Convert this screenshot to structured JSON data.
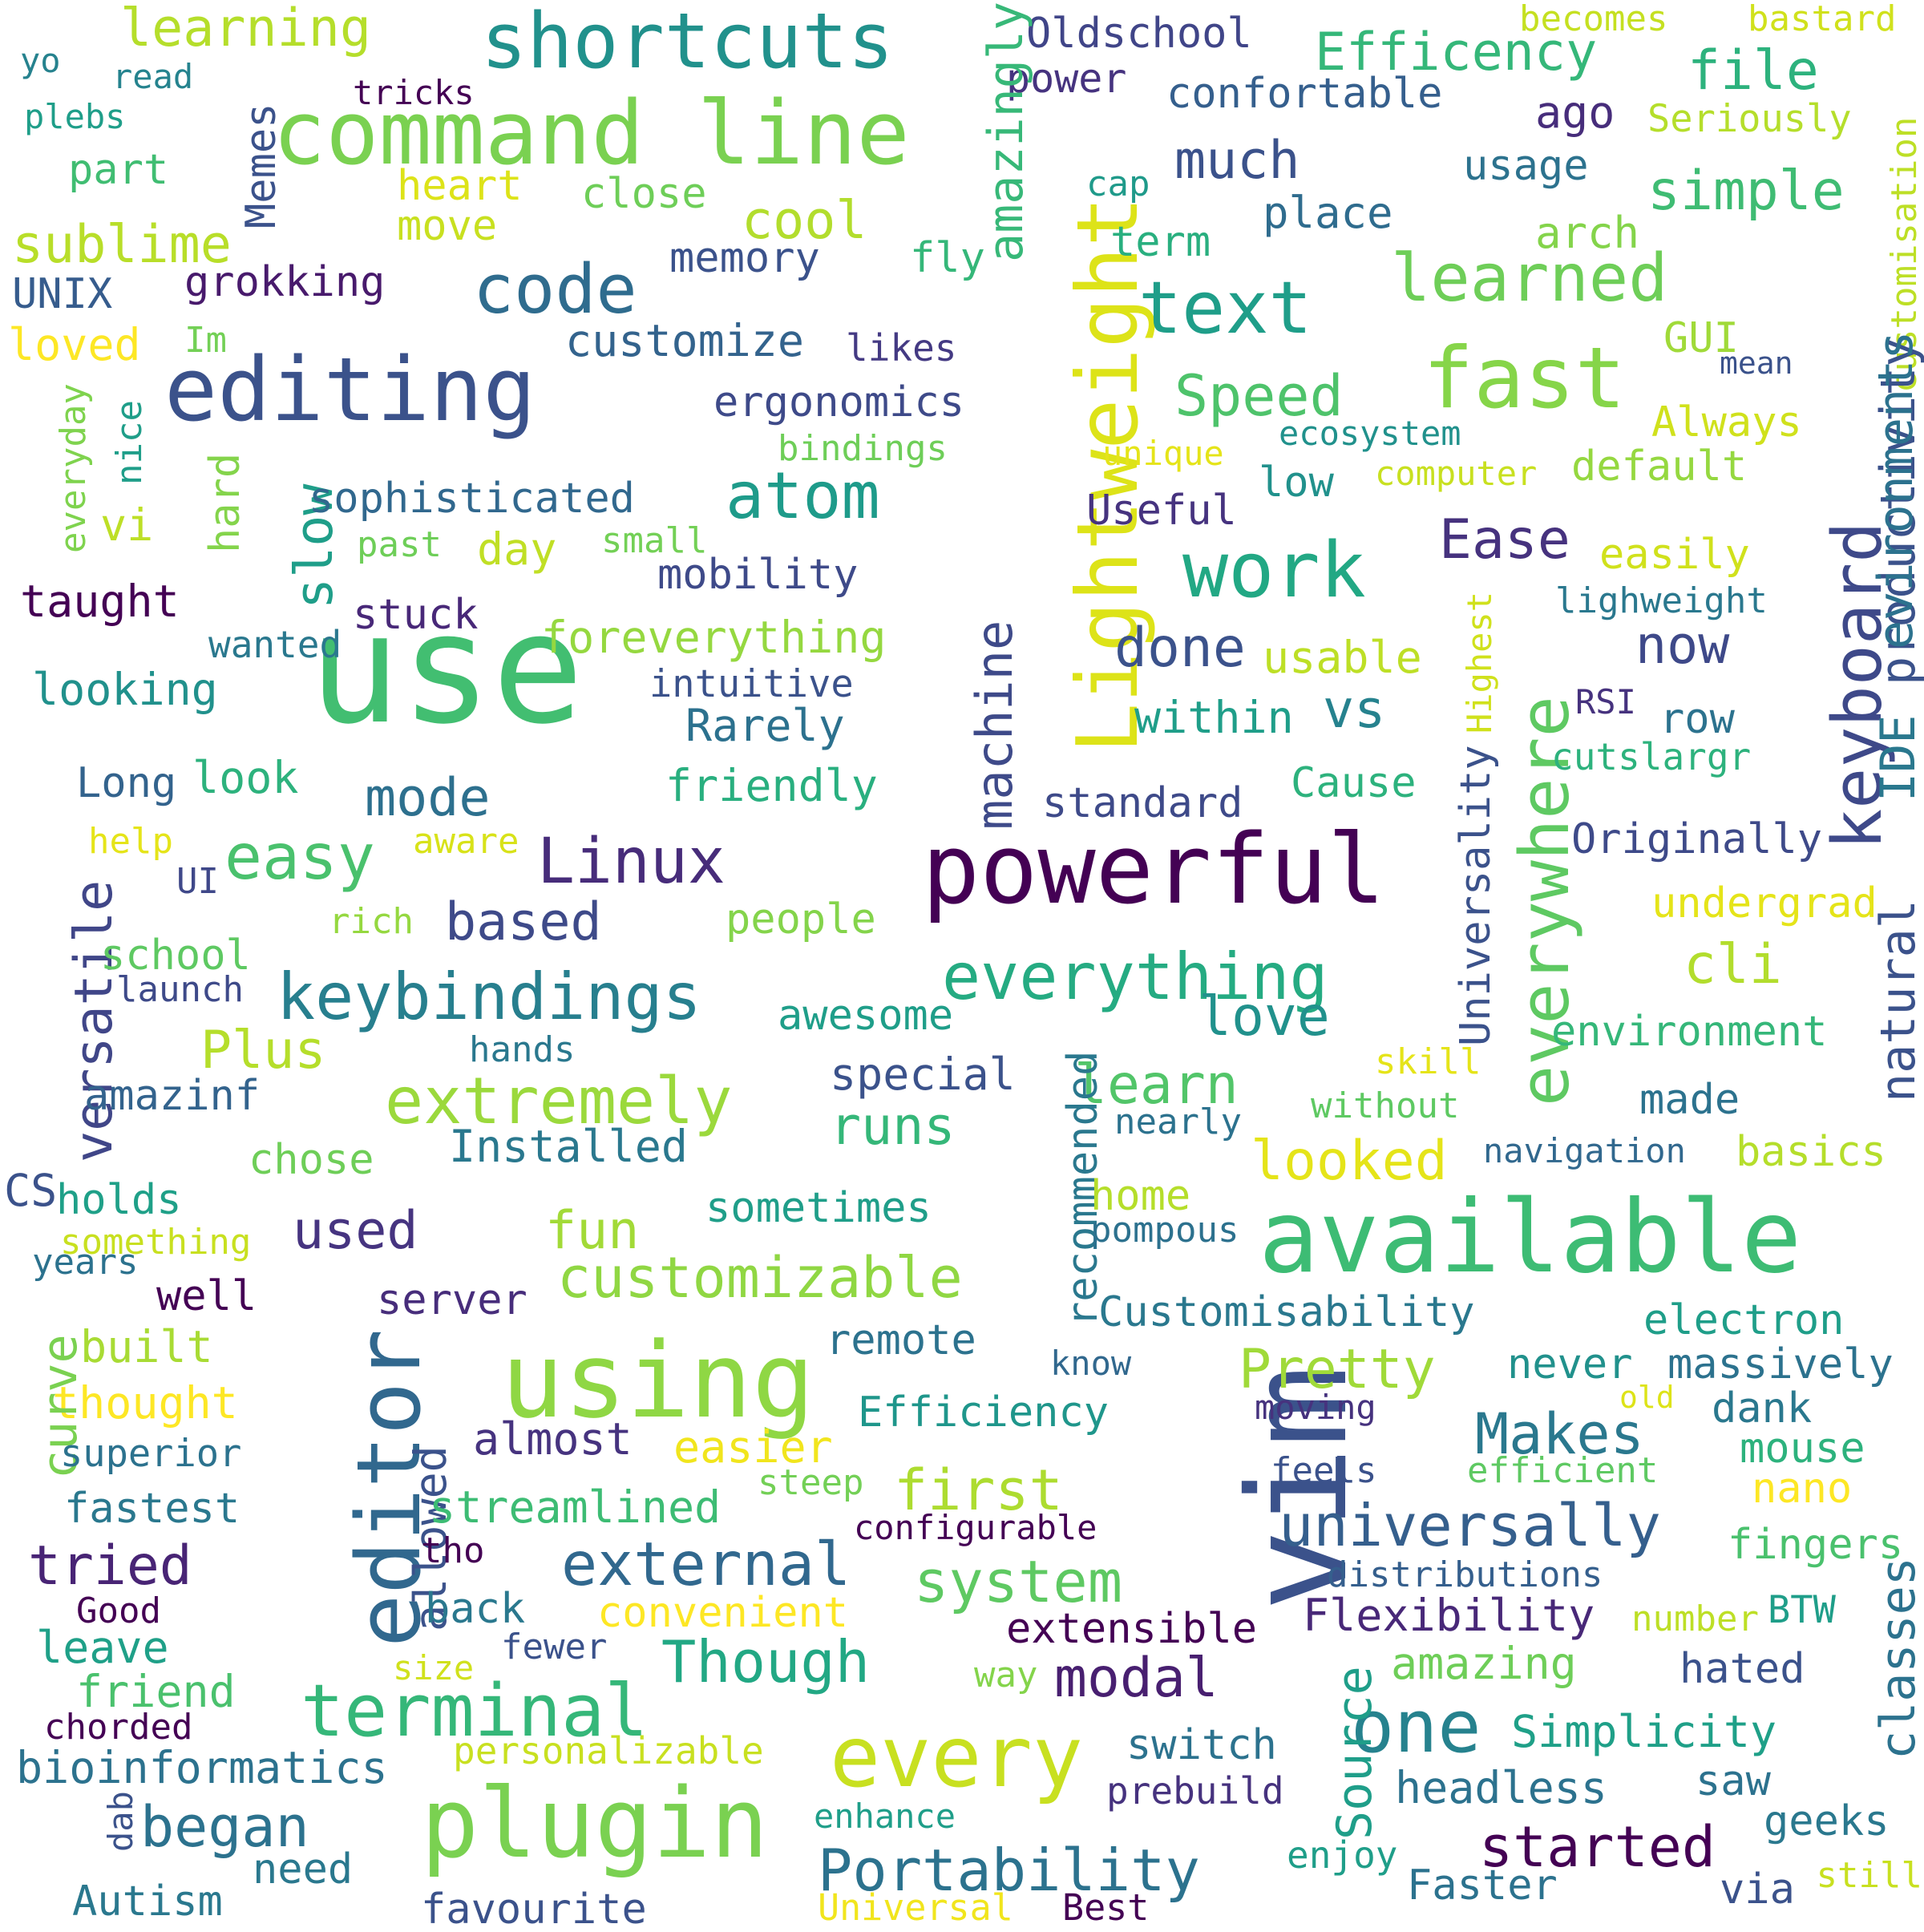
{
  "words": [
    {
      "text": "use",
      "color": "#42be71"
    },
    {
      "text": "editing",
      "color": "#3b528b"
    },
    {
      "text": "powerful",
      "color": "#440154"
    },
    {
      "text": "available",
      "color": "#3dbc74"
    },
    {
      "text": "vim",
      "color": "#3b528b"
    },
    {
      "text": "editor",
      "color": "#31688e"
    },
    {
      "text": "command line",
      "color": "#7ad151"
    },
    {
      "text": "shortcuts",
      "color": "#21918c"
    },
    {
      "text": "Lightweight",
      "color": "#dde318"
    },
    {
      "text": "using",
      "color": "#8fd744"
    },
    {
      "text": "plugin",
      "color": "#7ad151"
    },
    {
      "text": "every",
      "color": "#c8e020"
    },
    {
      "text": "code",
      "color": "#2f6c8e"
    },
    {
      "text": "text",
      "color": "#1f9e89"
    },
    {
      "text": "fast",
      "color": "#86d549"
    },
    {
      "text": "work",
      "color": "#22a884"
    },
    {
      "text": "everywhere",
      "color": "#5ec962"
    },
    {
      "text": "keyboard",
      "color": "#3e4989"
    },
    {
      "text": "atom",
      "color": "#1e9b8a"
    },
    {
      "text": "keybindings",
      "color": "#277f8e"
    },
    {
      "text": "everything",
      "color": "#25ab82"
    },
    {
      "text": "terminal",
      "color": "#35b779"
    },
    {
      "text": "extremely",
      "color": "#9bd93c"
    },
    {
      "text": "customizable",
      "color": "#90d743"
    },
    {
      "text": "one",
      "color": "#26828e"
    },
    {
      "text": "started",
      "color": "#440154"
    },
    {
      "text": "Portability",
      "color": "#2c728e"
    },
    {
      "text": "universally",
      "color": "#355f8d"
    },
    {
      "text": "Linux",
      "color": "#472c7a"
    },
    {
      "text": "learned",
      "color": "#6ece58"
    },
    {
      "text": "Efficency",
      "color": "#35b779"
    },
    {
      "text": "easy",
      "color": "#4ac16d"
    },
    {
      "text": "Speed",
      "color": "#4ec36b"
    },
    {
      "text": "machine",
      "color": "#3e4a89"
    },
    {
      "text": "versatile",
      "color": "#404688"
    },
    {
      "text": "external",
      "color": "#31688e"
    },
    {
      "text": "system",
      "color": "#5ec962"
    },
    {
      "text": "modal",
      "color": "#481f70"
    },
    {
      "text": "Though",
      "color": "#22a884"
    },
    {
      "text": "Makes",
      "color": "#2a788e"
    },
    {
      "text": "Pretty",
      "color": "#a0da39"
    },
    {
      "text": "first",
      "color": "#addc30"
    },
    {
      "text": "began",
      "color": "#2c728e"
    },
    {
      "text": "tried",
      "color": "#482475"
    },
    {
      "text": "learning",
      "color": "#b5de2b"
    },
    {
      "text": "much",
      "color": "#3b528b"
    },
    {
      "text": "file",
      "color": "#2db27d"
    },
    {
      "text": "simple",
      "color": "#3fbc73"
    },
    {
      "text": "cool",
      "color": "#b2dd2d"
    },
    {
      "text": "sublime",
      "color": "#b8de29"
    },
    {
      "text": "love",
      "color": "#21918c"
    },
    {
      "text": "done",
      "color": "#3b528b"
    },
    {
      "text": "now",
      "color": "#3e4989"
    },
    {
      "text": "learn",
      "color": "#52c569"
    },
    {
      "text": "looked",
      "color": "#e5e419"
    },
    {
      "text": "cli",
      "color": "#b2dd2d"
    },
    {
      "text": "Ease",
      "color": "#46327e"
    },
    {
      "text": "used",
      "color": "#463480"
    },
    {
      "text": "fun",
      "color": "#a2da37"
    },
    {
      "text": "runs",
      "color": "#35b779"
    },
    {
      "text": "based",
      "color": "#3e4a89"
    },
    {
      "text": "mode",
      "color": "#2d708e"
    },
    {
      "text": "Plus",
      "color": "#b5de2b"
    },
    {
      "text": "vs",
      "color": "#26828e"
    },
    {
      "text": "slow",
      "color": "#1f9e89"
    }
  ],
  "words_small": [
    {
      "text": "Oldschool",
      "color": "#404588"
    },
    {
      "text": "confortable",
      "color": "#355f8d"
    },
    {
      "text": "power",
      "color": "#46337f"
    },
    {
      "text": "ago",
      "color": "#472d7b"
    },
    {
      "text": "Seriously",
      "color": "#b5de2b"
    },
    {
      "text": "becomes",
      "color": "#c5e021"
    },
    {
      "text": "bastard",
      "color": "#d0e11c"
    },
    {
      "text": "customisation",
      "color": "#bddf26"
    },
    {
      "text": "amazingly",
      "color": "#37b878"
    },
    {
      "text": "usage",
      "color": "#2c728e"
    },
    {
      "text": "place",
      "color": "#2f6c8e"
    },
    {
      "text": "arch",
      "color": "#84d44b"
    },
    {
      "text": "cap",
      "color": "#1f9a8a"
    },
    {
      "text": "term",
      "color": "#29af7f"
    },
    {
      "text": "fly",
      "color": "#35b779"
    },
    {
      "text": "memory",
      "color": "#3b528b"
    },
    {
      "text": "close",
      "color": "#6ece58"
    },
    {
      "text": "heart",
      "color": "#dde318"
    },
    {
      "text": "move",
      "color": "#c8e020"
    },
    {
      "text": "tricks",
      "color": "#440154"
    },
    {
      "text": "read",
      "color": "#25838e"
    },
    {
      "text": "yo",
      "color": "#26828e"
    },
    {
      "text": "plebs",
      "color": "#1f9e89"
    },
    {
      "text": "part",
      "color": "#40bd72"
    },
    {
      "text": "Memes",
      "color": "#3b528b"
    },
    {
      "text": "UNIX",
      "color": "#365c8d"
    },
    {
      "text": "grokking",
      "color": "#481a6c"
    },
    {
      "text": "loved",
      "color": "#fde725"
    },
    {
      "text": "Im",
      "color": "#73d056"
    },
    {
      "text": "nice",
      "color": "#1f9e89"
    },
    {
      "text": "everyday",
      "color": "#7fd34e"
    },
    {
      "text": "vi",
      "color": "#bddf26"
    },
    {
      "text": "hard",
      "color": "#84d44b"
    },
    {
      "text": "customize",
      "color": "#33638d"
    },
    {
      "text": "likes",
      "color": "#443a83"
    },
    {
      "text": "ergonomics",
      "color": "#3e4a89"
    },
    {
      "text": "bindings",
      "color": "#6ece58"
    },
    {
      "text": "sophisticated",
      "color": "#31688e"
    },
    {
      "text": "past",
      "color": "#6ece58"
    },
    {
      "text": "small",
      "color": "#73d056"
    },
    {
      "text": "day",
      "color": "#c0df25"
    },
    {
      "text": "mobility",
      "color": "#3e4a89"
    },
    {
      "text": "taught",
      "color": "#440154"
    },
    {
      "text": "stuck",
      "color": "#482878"
    },
    {
      "text": "wanted",
      "color": "#2a788e"
    },
    {
      "text": "foreverything",
      "color": "#95d840"
    },
    {
      "text": "intuitive",
      "color": "#3b528b"
    },
    {
      "text": "looking",
      "color": "#21918c"
    },
    {
      "text": "Rarely",
      "color": "#2c718e"
    },
    {
      "text": "friendly",
      "color": "#29af7f"
    },
    {
      "text": "Long",
      "color": "#33638d"
    },
    {
      "text": "look",
      "color": "#2db27d"
    },
    {
      "text": "help",
      "color": "#e5e419"
    },
    {
      "text": "aware",
      "color": "#d8e219"
    },
    {
      "text": "UI",
      "color": "#3f4889"
    },
    {
      "text": "rich",
      "color": "#95d840"
    },
    {
      "text": "people",
      "color": "#84d44b"
    },
    {
      "text": "school",
      "color": "#5ec962"
    },
    {
      "text": "launch",
      "color": "#3e4a89"
    },
    {
      "text": "awesome",
      "color": "#1f9e89"
    },
    {
      "text": "hands",
      "color": "#2a788e"
    },
    {
      "text": "special",
      "color": "#3b528b"
    },
    {
      "text": "amazinf",
      "color": "#33638d"
    },
    {
      "text": "Installed",
      "color": "#2a788e"
    },
    {
      "text": "chose",
      "color": "#6ece58"
    },
    {
      "text": "CS",
      "color": "#3b528b"
    },
    {
      "text": "holds",
      "color": "#1fa088"
    },
    {
      "text": "something",
      "color": "#c8e020"
    },
    {
      "text": "years",
      "color": "#2c728e"
    },
    {
      "text": "sometimes",
      "color": "#1f9e89"
    },
    {
      "text": "well",
      "color": "#440154"
    },
    {
      "text": "server",
      "color": "#472d7b"
    },
    {
      "text": "built",
      "color": "#a8db34"
    },
    {
      "text": "thought",
      "color": "#fde725"
    },
    {
      "text": "curve",
      "color": "#7ad151"
    },
    {
      "text": "superior",
      "color": "#2c728e"
    },
    {
      "text": "fastest",
      "color": "#2a788e"
    },
    {
      "text": "allowed",
      "color": "#3b528b"
    },
    {
      "text": "almost",
      "color": "#46337f"
    },
    {
      "text": "easier",
      "color": "#f1e51d"
    },
    {
      "text": "streamlined",
      "color": "#3dbc74"
    },
    {
      "text": "steep",
      "color": "#73d056"
    },
    {
      "text": "remote",
      "color": "#2c728e"
    },
    {
      "text": "Efficiency",
      "color": "#1f968b"
    },
    {
      "text": "recommended",
      "color": "#2a788e"
    },
    {
      "text": "Universality",
      "color": "#3b528b"
    },
    {
      "text": "Highest",
      "color": "#d0e11c"
    },
    {
      "text": "Customisability",
      "color": "#2a788e"
    },
    {
      "text": "configurable",
      "color": "#440154"
    },
    {
      "text": "tho",
      "color": "#440154"
    },
    {
      "text": "back",
      "color": "#2a788e"
    },
    {
      "text": "convenient",
      "color": "#fde725"
    },
    {
      "text": "Good",
      "color": "#440154"
    },
    {
      "text": "leave",
      "color": "#1fa088"
    },
    {
      "text": "friend",
      "color": "#4ac16d"
    },
    {
      "text": "size",
      "color": "#d0e11c"
    },
    {
      "text": "fewer",
      "color": "#3b528b"
    },
    {
      "text": "chorded",
      "color": "#440154"
    },
    {
      "text": "bioinformatics",
      "color": "#2c728e"
    },
    {
      "text": "personalizable",
      "color": "#c8e020"
    },
    {
      "text": "dab",
      "color": "#3b528b"
    },
    {
      "text": "need",
      "color": "#2a788e"
    },
    {
      "text": "Autism",
      "color": "#2a788e"
    },
    {
      "text": "favourite",
      "color": "#3b528b"
    },
    {
      "text": "enhance",
      "color": "#1f9e89"
    },
    {
      "text": "Universal",
      "color": "#f1e51d"
    },
    {
      "text": "Best",
      "color": "#440154"
    },
    {
      "text": "switch",
      "color": "#2c728e"
    },
    {
      "text": "prebuild",
      "color": "#46327e"
    },
    {
      "text": "enjoy",
      "color": "#1f9e89"
    },
    {
      "text": "Faster",
      "color": "#2c728e"
    },
    {
      "text": "Source",
      "color": "#1f9e89"
    },
    {
      "text": "way",
      "color": "#84d44b"
    },
    {
      "text": "extensible",
      "color": "#440154"
    },
    {
      "text": "Flexibility",
      "color": "#482878"
    },
    {
      "text": "distributions",
      "color": "#355f8d"
    },
    {
      "text": "number",
      "color": "#bddf26"
    },
    {
      "text": "BTW",
      "color": "#1f9e89"
    },
    {
      "text": "classes",
      "color": "#2c728e"
    },
    {
      "text": "amazing",
      "color": "#6ece58"
    },
    {
      "text": "hated",
      "color": "#3b528b"
    },
    {
      "text": "Simplicity",
      "color": "#1fa088"
    },
    {
      "text": "headless",
      "color": "#2c728e"
    },
    {
      "text": "saw",
      "color": "#2c728e"
    },
    {
      "text": "geeks",
      "color": "#2a788e"
    },
    {
      "text": "via",
      "color": "#3b528b"
    },
    {
      "text": "still",
      "color": "#c8e020"
    },
    {
      "text": "fingers",
      "color": "#4ac16d"
    },
    {
      "text": "nano",
      "color": "#fde725"
    },
    {
      "text": "efficient",
      "color": "#5ec962"
    },
    {
      "text": "mouse",
      "color": "#2db27d"
    },
    {
      "text": "dank",
      "color": "#2a788e"
    },
    {
      "text": "old",
      "color": "#dde318"
    },
    {
      "text": "massively",
      "color": "#2c728e"
    },
    {
      "text": "never",
      "color": "#21918c"
    },
    {
      "text": "moving",
      "color": "#46327e"
    },
    {
      "text": "feels",
      "color": "#3b528b"
    },
    {
      "text": "know",
      "color": "#31688e"
    },
    {
      "text": "electron",
      "color": "#1f9e89"
    },
    {
      "text": "pompous",
      "color": "#2c718e"
    },
    {
      "text": "home",
      "color": "#b5de2b"
    },
    {
      "text": "navigation",
      "color": "#31688e"
    },
    {
      "text": "basics",
      "color": "#b5de2b"
    },
    {
      "text": "nearly",
      "color": "#2c728e"
    },
    {
      "text": "without",
      "color": "#5ec962"
    },
    {
      "text": "skill",
      "color": "#e5e419"
    },
    {
      "text": "made",
      "color": "#2c728e"
    },
    {
      "text": "environment",
      "color": "#35b779"
    },
    {
      "text": "natural",
      "color": "#3b528b"
    },
    {
      "text": "undergrad",
      "color": "#e5e419"
    },
    {
      "text": "Originally",
      "color": "#3e4a89"
    },
    {
      "text": "standard",
      "color": "#3e4a89"
    },
    {
      "text": "Cause",
      "color": "#2db27d"
    },
    {
      "text": "cutslargr",
      "color": "#2db27d"
    },
    {
      "text": "row",
      "color": "#2c728e"
    },
    {
      "text": "RSI",
      "color": "#46327e"
    },
    {
      "text": "IDE",
      "color": "#2a788e"
    },
    {
      "text": "within",
      "color": "#1f9e89"
    },
    {
      "text": "usable",
      "color": "#bddf26"
    },
    {
      "text": "lighweight",
      "color": "#2a788e"
    },
    {
      "text": "easily",
      "color": "#d0e11c"
    },
    {
      "text": "productivity",
      "color": "#3b528b"
    },
    {
      "text": "evironments",
      "color": "#2c728e"
    },
    {
      "text": "Useful",
      "color": "#46337f"
    },
    {
      "text": "low",
      "color": "#21918c"
    },
    {
      "text": "computer",
      "color": "#c8e020"
    },
    {
      "text": "default",
      "color": "#95d840"
    },
    {
      "text": "unique",
      "color": "#e5e419"
    },
    {
      "text": "ecosystem",
      "color": "#21918c"
    },
    {
      "text": "Always",
      "color": "#d0e11c"
    },
    {
      "text": "mean",
      "color": "#3b528b"
    },
    {
      "text": "GUI",
      "color": "#a0da39"
    }
  ]
}
